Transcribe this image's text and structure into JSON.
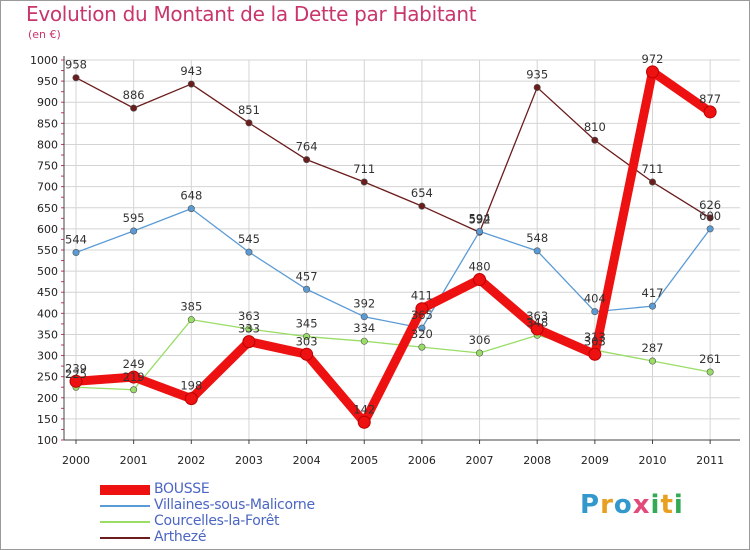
{
  "title": "Evolution du Montant de la Dette par Habitant",
  "subtitle": "(en €)",
  "logo": {
    "p": "P",
    "r": "r",
    "o": "o",
    "x": "x",
    "i1": "i",
    "t": "t",
    "i2": "i"
  },
  "colors": {
    "title": "#c8366b",
    "legend_text": "#4c66c2",
    "grid": "#d4d4d4",
    "axis": "#444444"
  },
  "chart_data": {
    "type": "line",
    "title": "Evolution du Montant de la Dette par Habitant",
    "subtitle": "(en €)",
    "xlabel": "",
    "ylabel": "",
    "x": [
      "2000",
      "2001",
      "2002",
      "2003",
      "2004",
      "2005",
      "2006",
      "2007",
      "2008",
      "2009",
      "2010",
      "2011"
    ],
    "ylim": [
      100,
      1000
    ],
    "yticks": [
      "100",
      "150",
      "200",
      "250",
      "300",
      "350",
      "400",
      "450",
      "500",
      "550",
      "600",
      "650",
      "700",
      "750",
      "800",
      "850",
      "900",
      "950",
      "1000"
    ],
    "grid": true,
    "legend_position": "bottom-left",
    "series": [
      {
        "name": "Arthezé",
        "color": "#6b1c1c",
        "values": [
          958,
          886,
          943,
          851,
          764,
          711,
          654,
          592,
          935,
          810,
          711,
          626
        ]
      },
      {
        "name": "Villaines-sous-Malicorne",
        "color": "#5b9bd5",
        "values": [
          544,
          595,
          648,
          545,
          457,
          392,
          365,
          594,
          548,
          404,
          417,
          600
        ]
      },
      {
        "name": "Courcelles-la-Forêt",
        "color": "#99dd66",
        "values": [
          225,
          219,
          385,
          363,
          345,
          334,
          320,
          306,
          348,
          313,
          287,
          261
        ]
      },
      {
        "name": "BOUSSE",
        "color": "#ee1111",
        "values": [
          239,
          249,
          198,
          333,
          303,
          142,
          411,
          480,
          363,
          303,
          972,
          877
        ]
      }
    ],
    "legend_order": [
      "BOUSSE",
      "Villaines-sous-Malicorne",
      "Courcelles-la-Forêt",
      "Arthezé"
    ]
  }
}
